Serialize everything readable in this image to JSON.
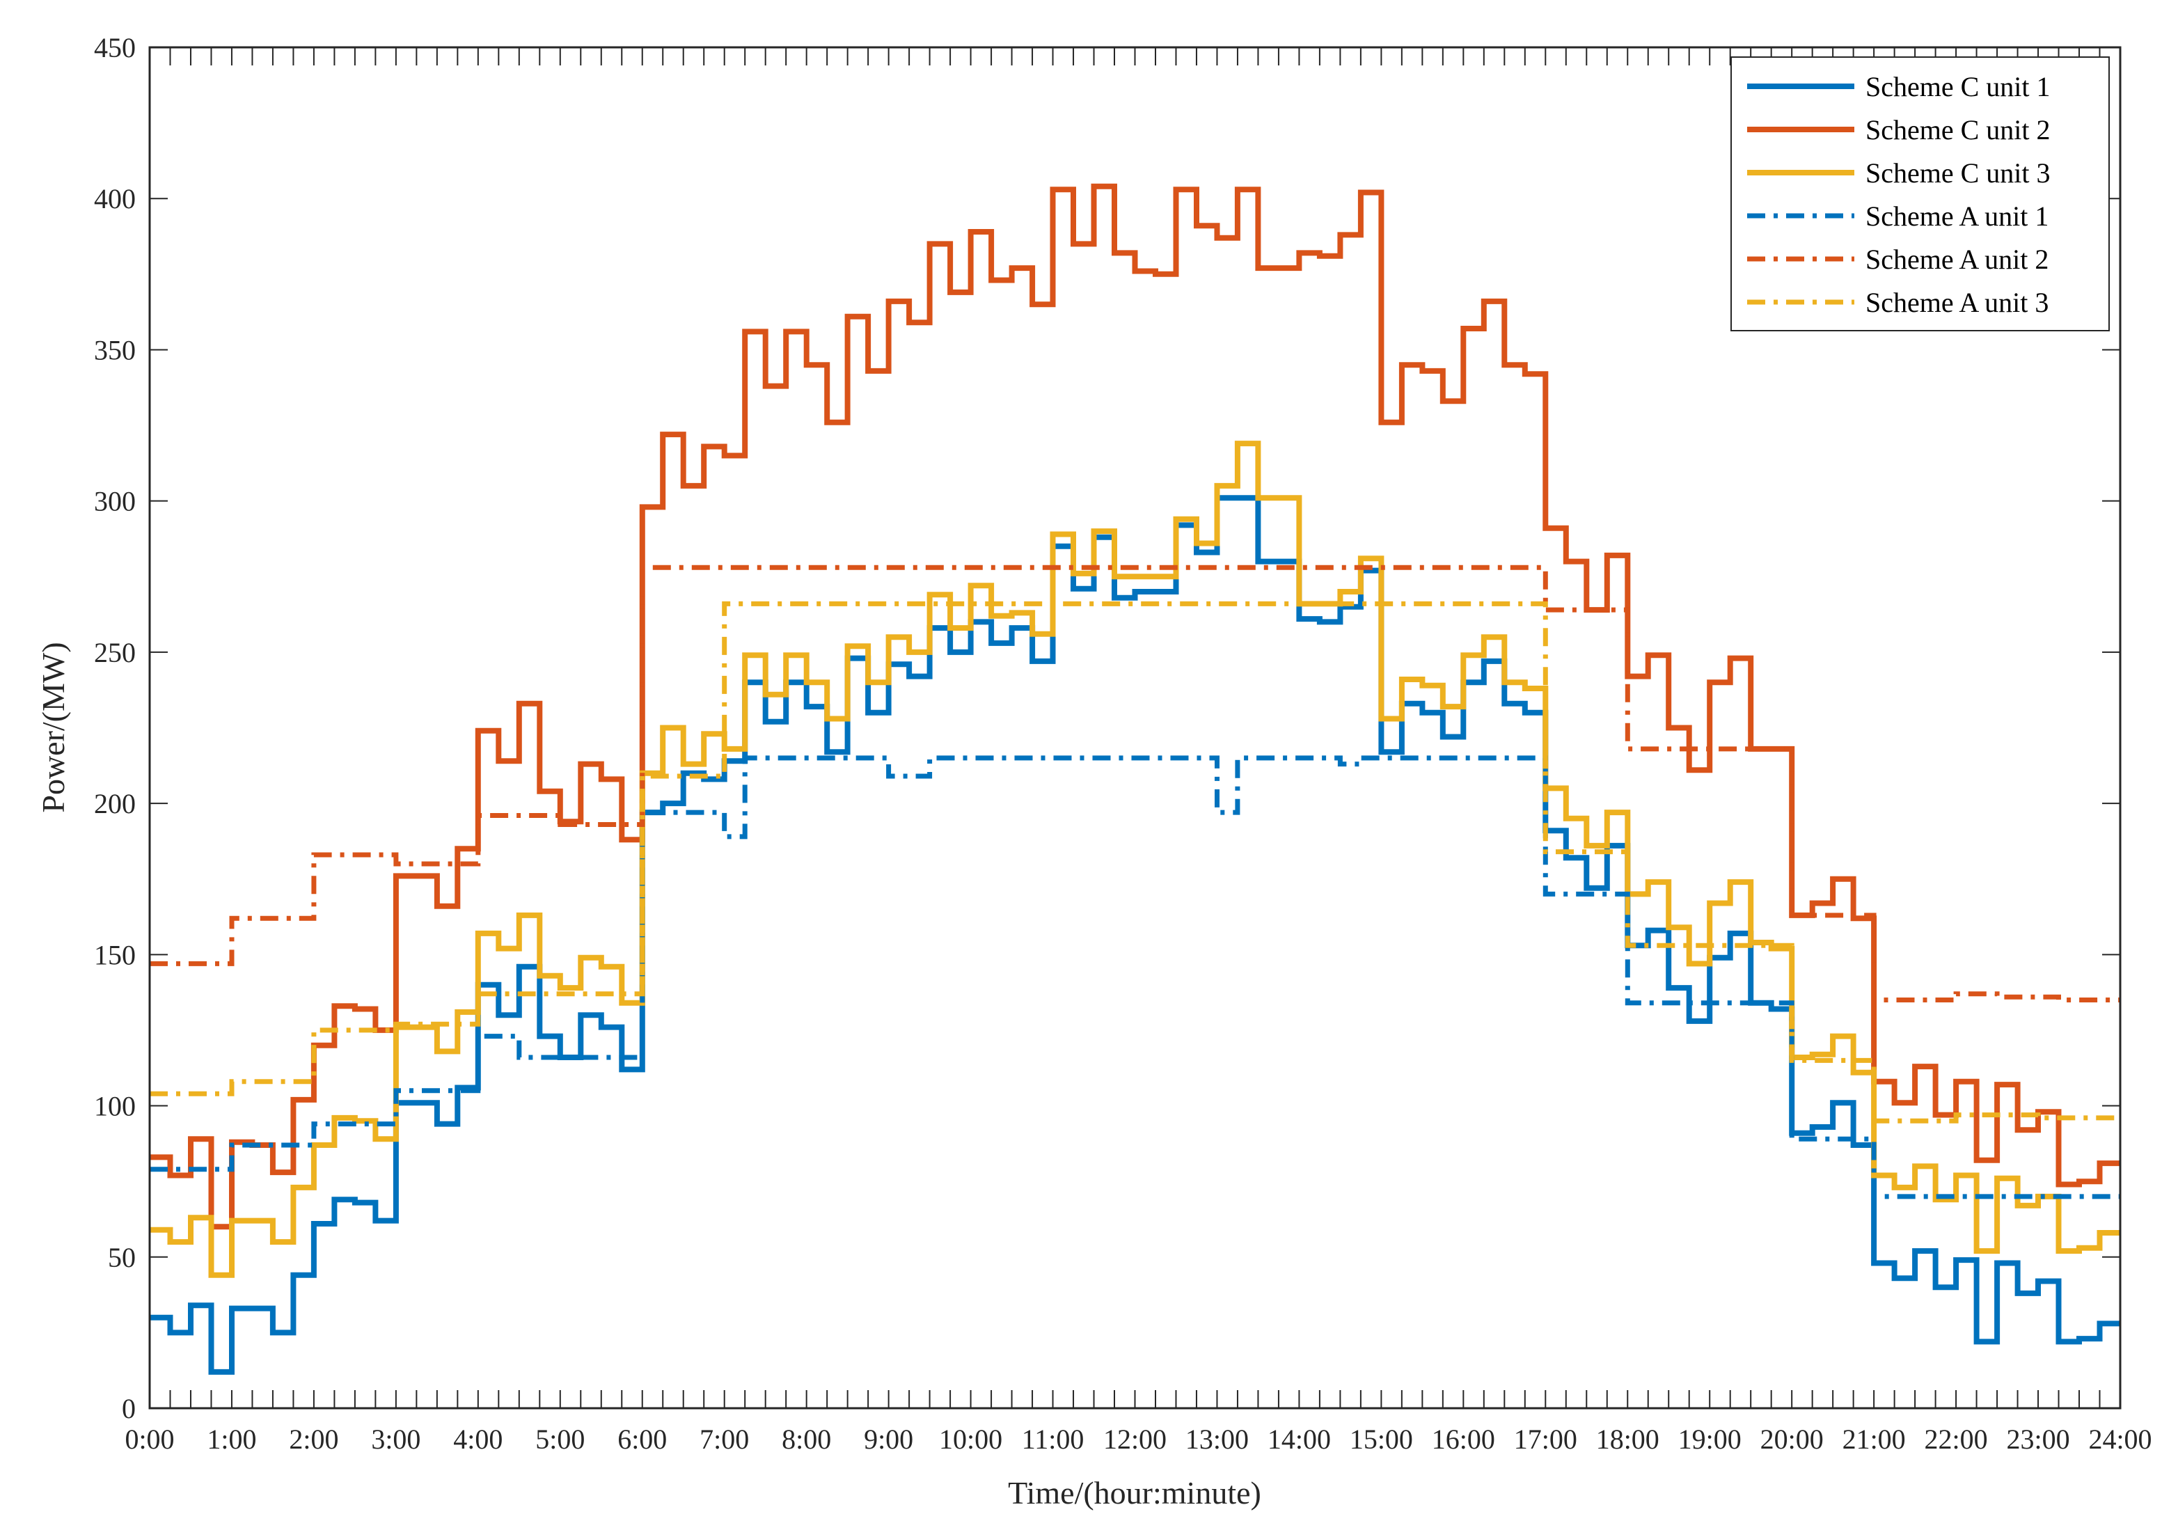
{
  "chart_data": {
    "type": "line",
    "step": true,
    "title": "",
    "xlabel": "Time/(hour:minute)",
    "ylabel": "Power/(MW)",
    "xlim": [
      0,
      24
    ],
    "ylim": [
      0,
      450
    ],
    "x_ticks": [
      0,
      1,
      2,
      3,
      4,
      5,
      6,
      7,
      8,
      9,
      10,
      11,
      12,
      13,
      14,
      15,
      16,
      17,
      18,
      19,
      20,
      21,
      22,
      23,
      24
    ],
    "x_tick_labels": [
      "0:00",
      "1:00",
      "2:00",
      "3:00",
      "4:00",
      "5:00",
      "6:00",
      "7:00",
      "8:00",
      "9:00",
      "10:00",
      "11:00",
      "12:00",
      "13:00",
      "14:00",
      "15:00",
      "16:00",
      "17:00",
      "18:00",
      "19:00",
      "20:00",
      "21:00",
      "22:00",
      "23:00",
      "24:00"
    ],
    "y_ticks": [
      0,
      50,
      100,
      150,
      200,
      250,
      300,
      350,
      400,
      450
    ],
    "y_tick_labels": [
      "0",
      "50",
      "100",
      "150",
      "200",
      "250",
      "300",
      "350",
      "400",
      "450"
    ],
    "x_step_hours": 0.25,
    "grid": false,
    "legend_position": "top-right",
    "series": [
      {
        "name": "Scheme C unit 1",
        "color": "#0072BD",
        "style": "solid",
        "values": [
          30,
          25,
          34,
          12,
          33,
          33,
          25,
          44,
          61,
          69,
          68,
          62,
          101,
          101,
          94,
          106,
          140,
          130,
          146,
          123,
          116,
          130,
          126,
          112,
          197,
          200,
          210,
          208,
          214,
          240,
          227,
          240,
          232,
          217,
          248,
          230,
          246,
          242,
          258,
          250,
          260,
          253,
          258,
          247,
          285,
          271,
          288,
          268,
          270,
          270,
          292,
          283,
          301,
          301,
          280,
          280,
          261,
          260,
          265,
          277,
          217,
          233,
          230,
          222,
          240,
          247,
          233,
          230,
          191,
          182,
          172,
          186,
          153,
          158,
          139,
          128,
          149,
          157,
          134,
          132,
          91,
          93,
          101,
          87,
          48,
          43,
          52,
          40,
          49,
          22,
          48,
          38,
          42,
          22,
          23,
          28
        ]
      },
      {
        "name": "Scheme C unit 2",
        "color": "#D95319",
        "style": "solid",
        "values": [
          83,
          77,
          89,
          60,
          88,
          87,
          78,
          102,
          120,
          133,
          132,
          125,
          176,
          176,
          166,
          185,
          224,
          214,
          233,
          204,
          194,
          213,
          208,
          188,
          298,
          322,
          305,
          318,
          315,
          356,
          338,
          356,
          345,
          326,
          361,
          343,
          366,
          359,
          385,
          369,
          389,
          373,
          377,
          365,
          403,
          385,
          404,
          382,
          376,
          375,
          403,
          391,
          387,
          403,
          377,
          377,
          382,
          381,
          388,
          402,
          326,
          345,
          343,
          333,
          357,
          366,
          345,
          342,
          291,
          280,
          264,
          282,
          242,
          249,
          225,
          211,
          240,
          248,
          218,
          218,
          163,
          167,
          175,
          162,
          108,
          101,
          113,
          97,
          108,
          82,
          107,
          92,
          98,
          74,
          75,
          81
        ]
      },
      {
        "name": "Scheme C unit 3",
        "color": "#EDB120",
        "style": "solid",
        "values": [
          59,
          55,
          63,
          44,
          62,
          62,
          55,
          73,
          87,
          96,
          95,
          89,
          126,
          126,
          118,
          131,
          157,
          152,
          163,
          143,
          139,
          149,
          146,
          134,
          210,
          225,
          213,
          223,
          218,
          249,
          236,
          249,
          240,
          228,
          252,
          240,
          255,
          250,
          269,
          258,
          272,
          262,
          263,
          256,
          289,
          276,
          290,
          275,
          275,
          275,
          294,
          286,
          305,
          319,
          301,
          301,
          266,
          266,
          270,
          281,
          228,
          241,
          239,
          232,
          249,
          255,
          240,
          238,
          205,
          195,
          186,
          197,
          170,
          174,
          159,
          147,
          167,
          174,
          154,
          152,
          116,
          117,
          123,
          111,
          77,
          73,
          80,
          69,
          77,
          52,
          76,
          67,
          70,
          52,
          53,
          58
        ]
      },
      {
        "name": "Scheme A unit 1",
        "color": "#0072BD",
        "style": "dashdot",
        "values": [
          79,
          79,
          79,
          79,
          87,
          87,
          87,
          87,
          94,
          94,
          94,
          94,
          105,
          105,
          105,
          105,
          123,
          123,
          116,
          116,
          116,
          116,
          116,
          116,
          197,
          197,
          197,
          197,
          189,
          215,
          215,
          215,
          215,
          215,
          215,
          215,
          209,
          209,
          215,
          215,
          215,
          215,
          215,
          215,
          215,
          215,
          215,
          215,
          215,
          215,
          215,
          215,
          197,
          215,
          215,
          215,
          215,
          215,
          213,
          215,
          215,
          215,
          215,
          215,
          215,
          215,
          215,
          215,
          170,
          170,
          170,
          170,
          134,
          134,
          134,
          134,
          134,
          134,
          134,
          134,
          89,
          89,
          89,
          89,
          70,
          70,
          70,
          70,
          70,
          70,
          70,
          70,
          70,
          70,
          70,
          70
        ]
      },
      {
        "name": "Scheme A unit 2",
        "color": "#D95319",
        "style": "dashdot",
        "values": [
          147,
          147,
          147,
          147,
          162,
          162,
          162,
          162,
          183,
          183,
          183,
          183,
          180,
          180,
          180,
          180,
          196,
          196,
          196,
          196,
          193,
          193,
          193,
          193,
          278,
          278,
          278,
          278,
          278,
          278,
          278,
          278,
          278,
          278,
          278,
          278,
          278,
          278,
          278,
          278,
          278,
          278,
          278,
          278,
          278,
          278,
          278,
          278,
          278,
          278,
          278,
          278,
          278,
          278,
          278,
          278,
          278,
          278,
          278,
          278,
          278,
          278,
          278,
          278,
          278,
          278,
          278,
          278,
          264,
          264,
          264,
          264,
          218,
          218,
          218,
          218,
          218,
          218,
          218,
          218,
          163,
          163,
          163,
          163,
          135,
          135,
          135,
          135,
          137,
          137,
          136,
          136,
          136,
          135,
          135,
          135
        ]
      },
      {
        "name": "Scheme A unit 3",
        "color": "#EDB120",
        "style": "dashdot",
        "values": [
          104,
          104,
          104,
          104,
          108,
          108,
          108,
          108,
          125,
          125,
          125,
          125,
          127,
          127,
          127,
          127,
          137,
          137,
          137,
          137,
          137,
          137,
          137,
          137,
          209,
          209,
          209,
          209,
          266,
          266,
          266,
          266,
          266,
          266,
          266,
          266,
          266,
          266,
          266,
          266,
          266,
          266,
          266,
          266,
          266,
          266,
          266,
          266,
          266,
          266,
          266,
          266,
          266,
          266,
          266,
          266,
          266,
          266,
          266,
          266,
          266,
          266,
          266,
          266,
          266,
          266,
          266,
          266,
          184,
          184,
          184,
          184,
          153,
          153,
          153,
          153,
          153,
          153,
          153,
          153,
          115,
          115,
          115,
          115,
          95,
          95,
          95,
          95,
          97,
          97,
          97,
          97,
          96,
          96,
          96,
          96
        ]
      }
    ]
  }
}
